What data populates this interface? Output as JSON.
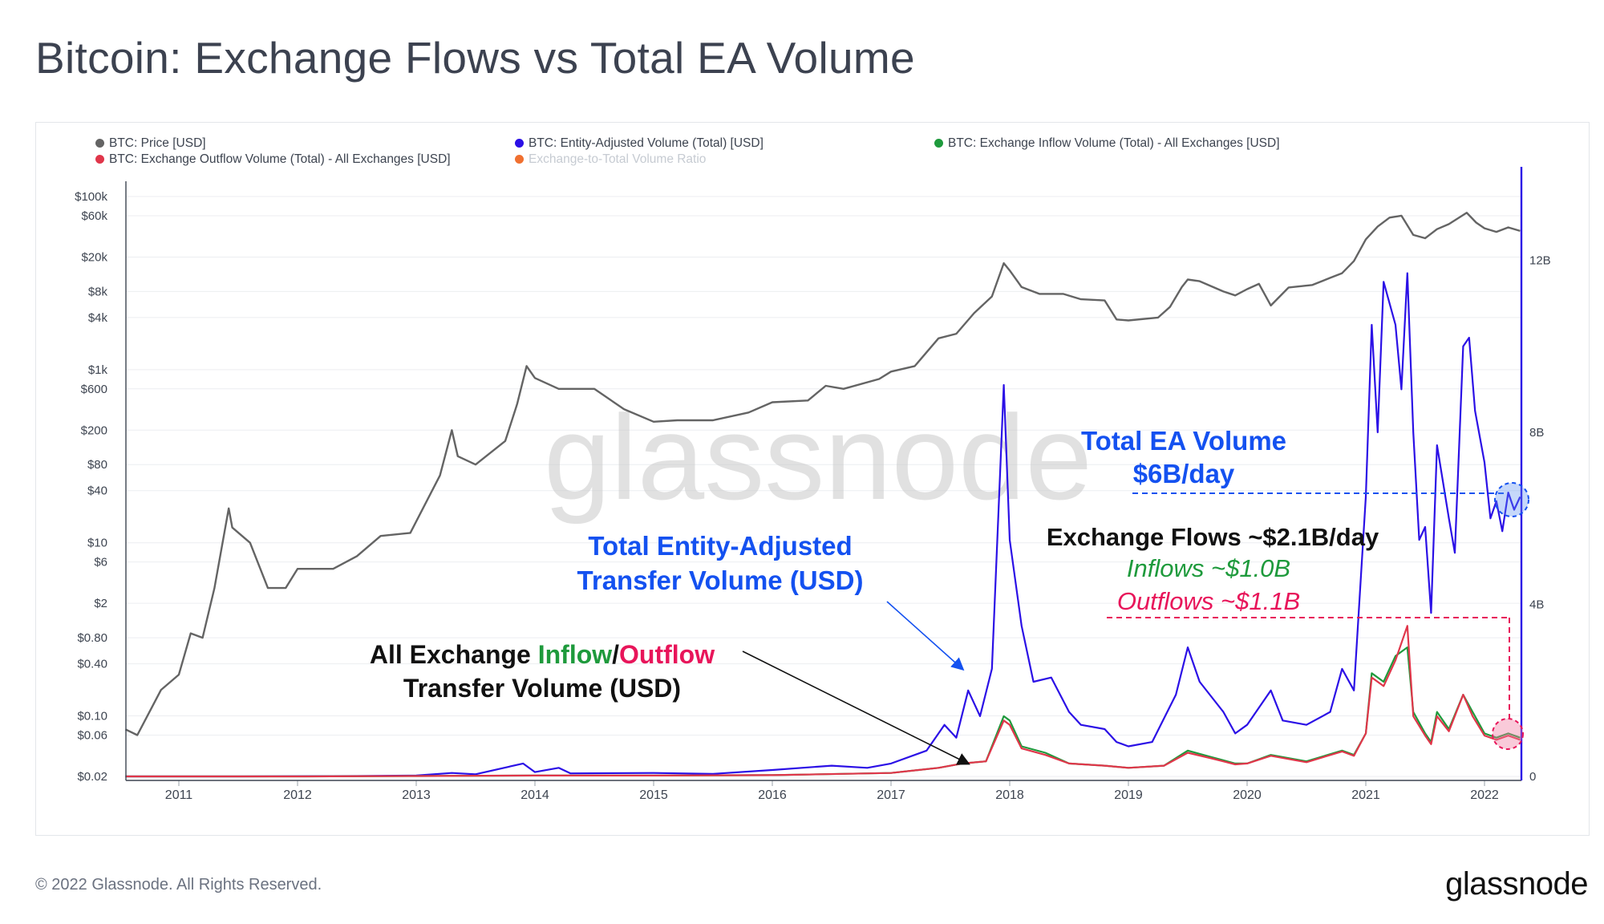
{
  "title": "Bitcoin: Exchange Flows vs Total EA Volume",
  "footer": {
    "copyright": "© 2022 Glassnode. All Rights Reserved.",
    "logo": "glassnode"
  },
  "watermark": "glassnode",
  "colors": {
    "price": "#646464",
    "volume": "#2b10e6",
    "inflow": "#1e9a3c",
    "outflow": "#e0364a",
    "ratio": "#f07030",
    "axis_right": "#2b10e6",
    "annot_blue": "#1451f0",
    "annot_green": "#1e9a3c",
    "annot_red": "#e8155a"
  },
  "legend": [
    {
      "label": "BTC: Price [USD]",
      "color": "#646464",
      "faded": false
    },
    {
      "label": "BTC: Entity-Adjusted Volume (Total) [USD]",
      "color": "#2b10e6",
      "faded": false
    },
    {
      "label": "BTC: Exchange Inflow Volume (Total) - All Exchanges [USD]",
      "color": "#1e9a3c",
      "faded": false
    },
    {
      "label": "BTC: Exchange Outflow Volume (Total) - All Exchanges [USD]",
      "color": "#e0364a",
      "faded": false
    },
    {
      "label": "Exchange-to-Total Volume Ratio",
      "color": "#f07030",
      "faded": true
    }
  ],
  "annotations": {
    "ea_total_line1": "Total EA Volume",
    "ea_total_line2": "$6B/day",
    "flows_title": "Exchange Flows ~$2.1B/day",
    "inflows": "Inflows ~$1.0B",
    "outflows": "Outflows ~$1.1B",
    "ea_curve_line1": "Total Entity-Adjusted",
    "ea_curve_line2": "Transfer Volume (USD)",
    "exch_prefix": "All Exchange ",
    "exch_inflow": "Inflow",
    "exch_slash": "/",
    "exch_outflow": "Outflow",
    "exch_line2": "Transfer Volume (USD)"
  },
  "chart_data": {
    "type": "line",
    "x_axis": {
      "ticks": [
        "2011",
        "2012",
        "2013",
        "2014",
        "2015",
        "2016",
        "2017",
        "2018",
        "2019",
        "2020",
        "2021",
        "2022"
      ],
      "range": [
        2010.55,
        2022.35
      ]
    },
    "y_left": {
      "scale": "log",
      "label": "Price [USD]",
      "ticks": [
        "$100k",
        "$60k",
        "$20k",
        "$8k",
        "$4k",
        "$1k",
        "$600",
        "$200",
        "$80",
        "$40",
        "$10",
        "$6",
        "$2",
        "$0.80",
        "$0.40",
        "$0.10",
        "$0.06",
        "$0.02"
      ],
      "tick_values": [
        100000,
        60000,
        20000,
        8000,
        4000,
        1000,
        600,
        200,
        80,
        40,
        10,
        6,
        2,
        0.8,
        0.4,
        0.1,
        0.06,
        0.02
      ]
    },
    "y_right": {
      "scale": "linear",
      "ticks": [
        "12B",
        "8B",
        "4B",
        "0"
      ],
      "tick_values": [
        12,
        8,
        4,
        0
      ],
      "range": [
        0,
        13.8
      ]
    },
    "series": [
      {
        "name": "BTC: Price [USD]",
        "axis": "left",
        "points": [
          [
            2010.55,
            0.07
          ],
          [
            2010.65,
            0.06
          ],
          [
            2010.85,
            0.2
          ],
          [
            2011.0,
            0.3
          ],
          [
            2011.1,
            0.9
          ],
          [
            2011.2,
            0.8
          ],
          [
            2011.3,
            3
          ],
          [
            2011.42,
            25
          ],
          [
            2011.45,
            15
          ],
          [
            2011.6,
            10
          ],
          [
            2011.75,
            3
          ],
          [
            2011.9,
            3
          ],
          [
            2012.0,
            5
          ],
          [
            2012.3,
            5
          ],
          [
            2012.5,
            7
          ],
          [
            2012.7,
            12
          ],
          [
            2012.95,
            13
          ],
          [
            2013.2,
            60
          ],
          [
            2013.3,
            200
          ],
          [
            2013.35,
            100
          ],
          [
            2013.5,
            80
          ],
          [
            2013.75,
            150
          ],
          [
            2013.85,
            400
          ],
          [
            2013.93,
            1100
          ],
          [
            2014.0,
            800
          ],
          [
            2014.2,
            600
          ],
          [
            2014.5,
            600
          ],
          [
            2014.75,
            350
          ],
          [
            2015.0,
            250
          ],
          [
            2015.2,
            260
          ],
          [
            2015.5,
            260
          ],
          [
            2015.8,
            320
          ],
          [
            2016.0,
            420
          ],
          [
            2016.3,
            440
          ],
          [
            2016.45,
            650
          ],
          [
            2016.6,
            600
          ],
          [
            2016.9,
            780
          ],
          [
            2017.0,
            950
          ],
          [
            2017.2,
            1100
          ],
          [
            2017.4,
            2300
          ],
          [
            2017.55,
            2600
          ],
          [
            2017.7,
            4500
          ],
          [
            2017.85,
            7000
          ],
          [
            2017.95,
            17000
          ],
          [
            2018.0,
            14000
          ],
          [
            2018.1,
            9000
          ],
          [
            2018.25,
            7500
          ],
          [
            2018.45,
            7500
          ],
          [
            2018.6,
            6500
          ],
          [
            2018.8,
            6300
          ],
          [
            2018.9,
            3800
          ],
          [
            2019.0,
            3700
          ],
          [
            2019.25,
            4000
          ],
          [
            2019.35,
            5300
          ],
          [
            2019.45,
            9000
          ],
          [
            2019.5,
            11000
          ],
          [
            2019.6,
            10500
          ],
          [
            2019.8,
            8000
          ],
          [
            2019.9,
            7200
          ],
          [
            2020.0,
            8500
          ],
          [
            2020.1,
            9800
          ],
          [
            2020.2,
            5500
          ],
          [
            2020.35,
            8900
          ],
          [
            2020.55,
            9500
          ],
          [
            2020.7,
            11500
          ],
          [
            2020.8,
            13000
          ],
          [
            2020.9,
            18000
          ],
          [
            2021.0,
            32000
          ],
          [
            2021.1,
            45000
          ],
          [
            2021.2,
            57000
          ],
          [
            2021.3,
            60000
          ],
          [
            2021.4,
            36000
          ],
          [
            2021.5,
            33000
          ],
          [
            2021.6,
            42000
          ],
          [
            2021.7,
            48000
          ],
          [
            2021.85,
            65000
          ],
          [
            2021.93,
            50000
          ],
          [
            2022.0,
            43000
          ],
          [
            2022.1,
            39000
          ],
          [
            2022.2,
            44000
          ],
          [
            2022.3,
            40000
          ]
        ]
      },
      {
        "name": "BTC: Entity-Adjusted Volume (Total) [USD]",
        "axis": "right",
        "points": [
          [
            2010.55,
            0
          ],
          [
            2011.5,
            0
          ],
          [
            2012.5,
            0.01
          ],
          [
            2013.0,
            0.02
          ],
          [
            2013.3,
            0.08
          ],
          [
            2013.5,
            0.05
          ],
          [
            2013.9,
            0.3
          ],
          [
            2014.0,
            0.1
          ],
          [
            2014.2,
            0.2
          ],
          [
            2014.3,
            0.07
          ],
          [
            2015.0,
            0.08
          ],
          [
            2015.5,
            0.06
          ],
          [
            2016.0,
            0.15
          ],
          [
            2016.5,
            0.25
          ],
          [
            2016.8,
            0.2
          ],
          [
            2017.0,
            0.3
          ],
          [
            2017.3,
            0.6
          ],
          [
            2017.45,
            1.2
          ],
          [
            2017.55,
            0.9
          ],
          [
            2017.65,
            2.0
          ],
          [
            2017.75,
            1.4
          ],
          [
            2017.85,
            2.5
          ],
          [
            2017.95,
            9.1
          ],
          [
            2018.0,
            5.5
          ],
          [
            2018.1,
            3.5
          ],
          [
            2018.2,
            2.2
          ],
          [
            2018.35,
            2.3
          ],
          [
            2018.5,
            1.5
          ],
          [
            2018.6,
            1.2
          ],
          [
            2018.8,
            1.1
          ],
          [
            2018.9,
            0.8
          ],
          [
            2019.0,
            0.7
          ],
          [
            2019.2,
            0.8
          ],
          [
            2019.4,
            1.9
          ],
          [
            2019.5,
            3.0
          ],
          [
            2019.6,
            2.2
          ],
          [
            2019.8,
            1.5
          ],
          [
            2019.9,
            1.0
          ],
          [
            2020.0,
            1.2
          ],
          [
            2020.2,
            2.0
          ],
          [
            2020.3,
            1.3
          ],
          [
            2020.5,
            1.2
          ],
          [
            2020.7,
            1.5
          ],
          [
            2020.8,
            2.5
          ],
          [
            2020.9,
            2.0
          ],
          [
            2021.0,
            6.5
          ],
          [
            2021.05,
            10.5
          ],
          [
            2021.1,
            8.0
          ],
          [
            2021.15,
            11.5
          ],
          [
            2021.25,
            10.5
          ],
          [
            2021.3,
            9.0
          ],
          [
            2021.35,
            11.7
          ],
          [
            2021.4,
            8.0
          ],
          [
            2021.45,
            5.5
          ],
          [
            2021.5,
            5.8
          ],
          [
            2021.55,
            3.8
          ],
          [
            2021.6,
            7.7
          ],
          [
            2021.7,
            6.0
          ],
          [
            2021.75,
            5.2
          ],
          [
            2021.82,
            10.0
          ],
          [
            2021.87,
            10.2
          ],
          [
            2021.92,
            8.5
          ],
          [
            2022.0,
            7.3
          ],
          [
            2022.05,
            6.0
          ],
          [
            2022.1,
            6.4
          ],
          [
            2022.15,
            5.7
          ],
          [
            2022.2,
            6.6
          ],
          [
            2022.25,
            6.2
          ],
          [
            2022.3,
            6.5
          ]
        ]
      },
      {
        "name": "BTC: Exchange Inflow Volume (Total) - All Exchanges [USD]",
        "axis": "right",
        "points": [
          [
            2010.55,
            0
          ],
          [
            2012.0,
            0
          ],
          [
            2013.0,
            0.01
          ],
          [
            2014.0,
            0.02
          ],
          [
            2015.0,
            0.02
          ],
          [
            2016.0,
            0.03
          ],
          [
            2017.0,
            0.08
          ],
          [
            2017.4,
            0.2
          ],
          [
            2017.6,
            0.3
          ],
          [
            2017.8,
            0.35
          ],
          [
            2017.95,
            1.4
          ],
          [
            2018.0,
            1.3
          ],
          [
            2018.1,
            0.7
          ],
          [
            2018.3,
            0.55
          ],
          [
            2018.5,
            0.3
          ],
          [
            2018.8,
            0.25
          ],
          [
            2019.0,
            0.2
          ],
          [
            2019.3,
            0.25
          ],
          [
            2019.5,
            0.6
          ],
          [
            2019.7,
            0.45
          ],
          [
            2019.9,
            0.3
          ],
          [
            2020.0,
            0.3
          ],
          [
            2020.2,
            0.5
          ],
          [
            2020.5,
            0.35
          ],
          [
            2020.8,
            0.6
          ],
          [
            2020.9,
            0.5
          ],
          [
            2021.0,
            1.0
          ],
          [
            2021.05,
            2.4
          ],
          [
            2021.15,
            2.2
          ],
          [
            2021.25,
            2.8
          ],
          [
            2021.35,
            3.0
          ],
          [
            2021.4,
            1.5
          ],
          [
            2021.5,
            1.0
          ],
          [
            2021.55,
            0.8
          ],
          [
            2021.6,
            1.5
          ],
          [
            2021.7,
            1.1
          ],
          [
            2021.82,
            1.9
          ],
          [
            2021.9,
            1.5
          ],
          [
            2022.0,
            1.0
          ],
          [
            2022.1,
            0.9
          ],
          [
            2022.2,
            1.0
          ],
          [
            2022.3,
            0.9
          ]
        ]
      },
      {
        "name": "BTC: Exchange Outflow Volume (Total) - All Exchanges [USD]",
        "axis": "right",
        "points": [
          [
            2010.55,
            0
          ],
          [
            2012.0,
            0
          ],
          [
            2013.0,
            0.01
          ],
          [
            2014.0,
            0.02
          ],
          [
            2015.0,
            0.02
          ],
          [
            2016.0,
            0.03
          ],
          [
            2017.0,
            0.08
          ],
          [
            2017.4,
            0.2
          ],
          [
            2017.6,
            0.3
          ],
          [
            2017.8,
            0.35
          ],
          [
            2017.95,
            1.3
          ],
          [
            2018.0,
            1.2
          ],
          [
            2018.1,
            0.65
          ],
          [
            2018.3,
            0.5
          ],
          [
            2018.5,
            0.3
          ],
          [
            2018.8,
            0.25
          ],
          [
            2019.0,
            0.2
          ],
          [
            2019.3,
            0.25
          ],
          [
            2019.5,
            0.55
          ],
          [
            2019.7,
            0.42
          ],
          [
            2019.9,
            0.28
          ],
          [
            2020.0,
            0.3
          ],
          [
            2020.2,
            0.48
          ],
          [
            2020.5,
            0.33
          ],
          [
            2020.8,
            0.58
          ],
          [
            2020.9,
            0.48
          ],
          [
            2021.0,
            1.0
          ],
          [
            2021.05,
            2.3
          ],
          [
            2021.15,
            2.1
          ],
          [
            2021.25,
            2.7
          ],
          [
            2021.35,
            3.5
          ],
          [
            2021.4,
            1.4
          ],
          [
            2021.5,
            0.95
          ],
          [
            2021.55,
            0.75
          ],
          [
            2021.6,
            1.4
          ],
          [
            2021.7,
            1.05
          ],
          [
            2021.82,
            1.9
          ],
          [
            2021.9,
            1.4
          ],
          [
            2022.0,
            0.95
          ],
          [
            2022.1,
            0.85
          ],
          [
            2022.2,
            0.95
          ],
          [
            2022.3,
            0.85
          ]
        ]
      }
    ]
  }
}
